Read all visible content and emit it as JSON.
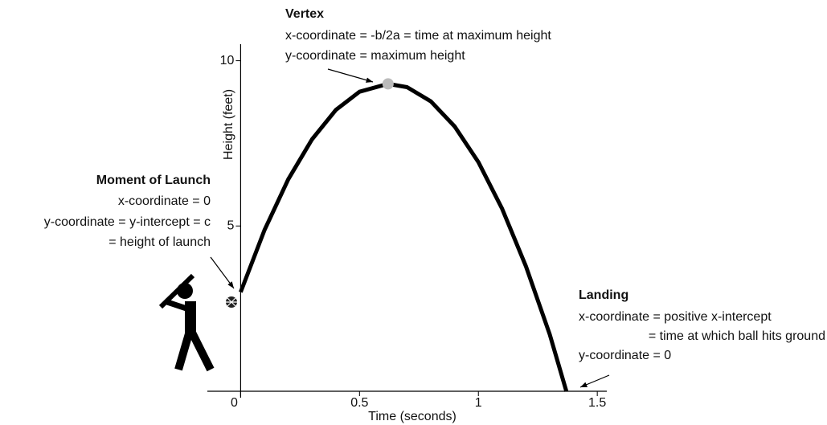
{
  "chart_data": {
    "type": "line",
    "x_label": "Time (seconds)",
    "y_label": "Height (feet)",
    "x": [
      0,
      0.1,
      0.2,
      0.3,
      0.4,
      0.5,
      0.62,
      0.7,
      0.8,
      0.9,
      1.0,
      1.1,
      1.2,
      1.3,
      1.37
    ],
    "values": [
      3.0,
      4.87,
      6.41,
      7.62,
      8.51,
      9.06,
      9.3,
      9.2,
      8.77,
      8.01,
      6.93,
      5.52,
      3.78,
      1.72,
      0
    ],
    "color": "#000000",
    "vertex_color": "#bbbbbb",
    "xlim": [
      -0.14,
      1.54
    ],
    "ylim": [
      0,
      10.5
    ],
    "xticks": [
      0,
      0.5,
      1,
      1.5
    ],
    "yticks": [
      5,
      10
    ],
    "annotations": [
      {
        "title": "Vertex",
        "lines": [
          "x-coordinate = -b/2a = time at maximum height",
          "y-coordinate = maximum height"
        ]
      },
      {
        "title": "Moment of Launch",
        "lines": [
          "x-coordinate = 0",
          "y-coordinate = y-intercept = c",
          "= height of launch"
        ]
      },
      {
        "title": "Landing",
        "lines": [
          "x-coordinate = positive x-intercept",
          "= time at which ball hits ground",
          "y-coordinate = 0"
        ]
      }
    ]
  }
}
